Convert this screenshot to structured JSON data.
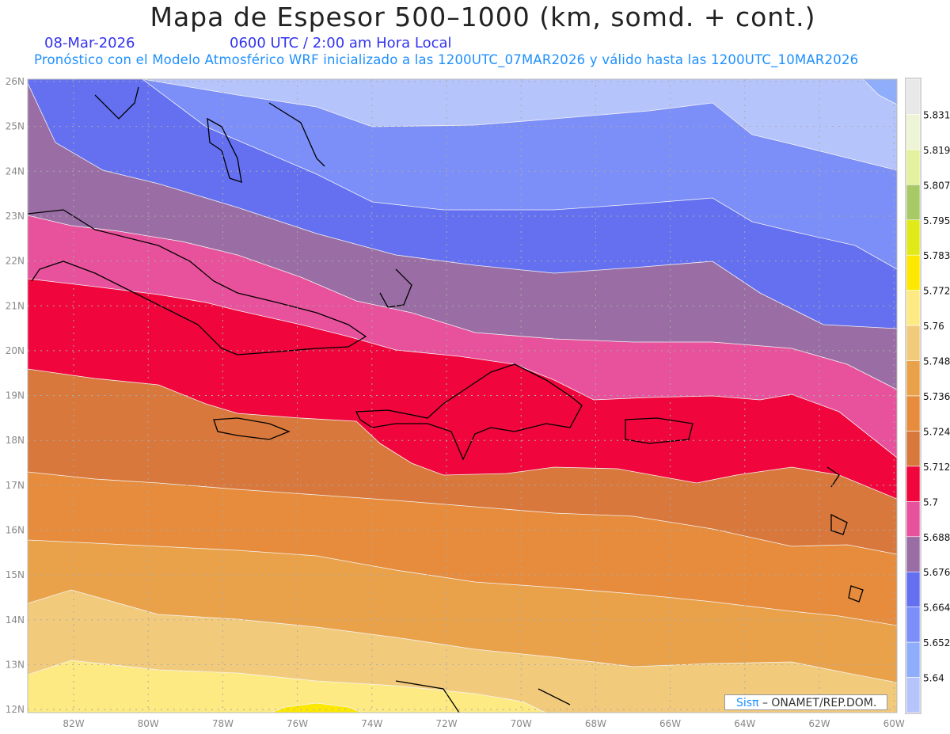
{
  "header": {
    "title": "Mapa de Espesor 500–1000 (km, somd. + cont.)",
    "date": "08-Mar-2026",
    "time": "0600 UTC / 2:00 am Hora Local",
    "subtitle": "Pronóstico con el Modelo Atmosférico WRF inicializado a las 1200UTC_07MAR2026 y válido hasta las  1200UTC_10MAR2026"
  },
  "map": {
    "lon_labels": [
      "82W",
      "80W",
      "78W",
      "76W",
      "74W",
      "72W",
      "70W",
      "68W",
      "66W",
      "64W",
      "62W",
      "60W"
    ],
    "lat_labels": [
      "26N",
      "25N",
      "24N",
      "23N",
      "22N",
      "21N",
      "20N",
      "19N",
      "18N",
      "17N",
      "16N",
      "15N",
      "14N",
      "13N",
      "12N"
    ],
    "lon_range": [
      -83.2,
      -60
    ],
    "lat_range": [
      11.9,
      26
    ]
  },
  "colorbar": {
    "labels": [
      "5.831",
      "5.819",
      "5.807",
      "5.795",
      "5.783",
      "5.772",
      "5.76",
      "5.748",
      "5.736",
      "5.724",
      "5.712",
      "5.7",
      "5.688",
      "5.676",
      "5.664",
      "5.652",
      "5.64"
    ],
    "colors": [
      "#e8e8e8",
      "#eef5d6",
      "#e4f2a0",
      "#a8ca66",
      "#e0ea18",
      "#fce800",
      "#fdea82",
      "#f2ca7c",
      "#eaa24a",
      "#e68c3c",
      "#d8783c",
      "#f0063c",
      "#e8529c",
      "#9a6ea4",
      "#6470f0",
      "#7c8ef8",
      "#8eaefc",
      "#b6c4fc"
    ]
  },
  "credit": {
    "brand": "Sisπ",
    "text": " –  ONAMET/REP.DOM."
  }
}
